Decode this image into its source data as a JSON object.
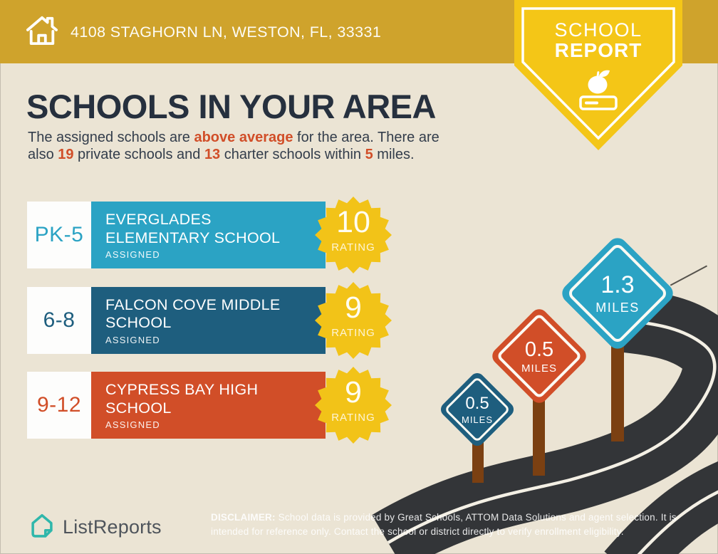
{
  "header": {
    "address": "4108 STAGHORN LN, WESTON, FL, 33331"
  },
  "badge": {
    "line1": "SCHOOL",
    "line2": "REPORT"
  },
  "intro": {
    "title": "SCHOOLS IN YOUR AREA",
    "seg1": "The assigned schools are ",
    "hl1": "above average",
    "seg2": " for the area. There are",
    "seg3": "also ",
    "hl2": "19",
    "seg4": " private schools and ",
    "hl3": "13",
    "seg5": " charter schools within ",
    "hl4": "5",
    "seg6": " miles."
  },
  "schools": [
    {
      "grade": "PK-5",
      "name": "EVERGLADES\nELEMENTARY SCHOOL",
      "status": "ASSIGNED",
      "rating": "10",
      "rating_label": "RATING",
      "color": "#2BA3C4"
    },
    {
      "grade": "6-8",
      "name": "FALCON COVE MIDDLE\nSCHOOL",
      "status": "ASSIGNED",
      "rating": "9",
      "rating_label": "RATING",
      "color": "#1E5E7E"
    },
    {
      "grade": "9-12",
      "name": "CYPRESS BAY HIGH\nSCHOOL",
      "status": "ASSIGNED",
      "rating": "9",
      "rating_label": "RATING",
      "color": "#D14E28"
    }
  ],
  "signs": [
    {
      "distance": "0.5",
      "unit": "MILES",
      "color": "#1E5E7E"
    },
    {
      "distance": "0.5",
      "unit": "MILES",
      "color": "#D14E28"
    },
    {
      "distance": "1.3",
      "unit": "MILES",
      "color": "#2BA3C4"
    }
  ],
  "footer": {
    "logo_text": "ListReports",
    "disclaimer_label": "DISCLAIMER:",
    "disclaimer_text": " School data is provided by Great Schools, ATTOM Data Solutions and agent selection. It is intended for reference only. Contact the school or district directly to verify enrollment eligibility."
  },
  "icons": {
    "header": "home-icon",
    "badge": "apple-book-icon",
    "logo": "listreports-house-icon"
  },
  "colors": {
    "header_gold": "#CFA32C",
    "badge_yellow": "#F4C617",
    "rating_badge": "#F2C318",
    "background": "#EBE4D4",
    "road": "#333538",
    "road_line": "#F4F0E5",
    "post_brown": "#7B4012",
    "highlight": "#D14E28",
    "title_navy": "#26303E",
    "logo_teal": "#2FB7AB"
  }
}
